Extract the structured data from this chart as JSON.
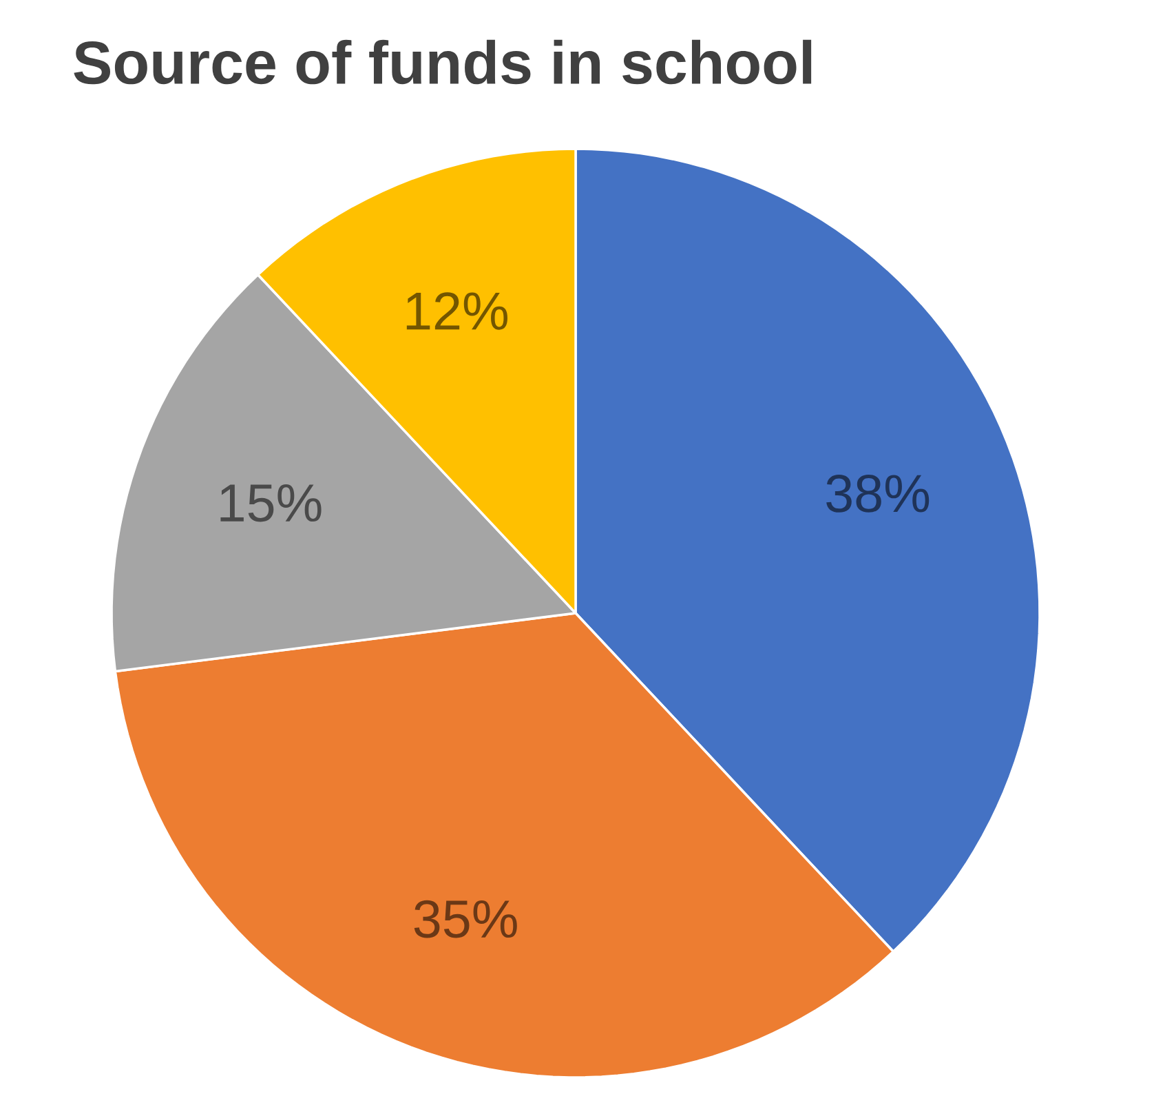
{
  "chart_data": {
    "type": "pie",
    "title": "Source of funds in school",
    "categories": [
      null,
      null,
      null,
      null
    ],
    "values": [
      38,
      35,
      15,
      12
    ],
    "value_labels": [
      "38%",
      "35%",
      "15%",
      "12%"
    ],
    "colors": [
      "#4472c4",
      "#ed7d31",
      "#a5a5a5",
      "#ffc000"
    ]
  }
}
